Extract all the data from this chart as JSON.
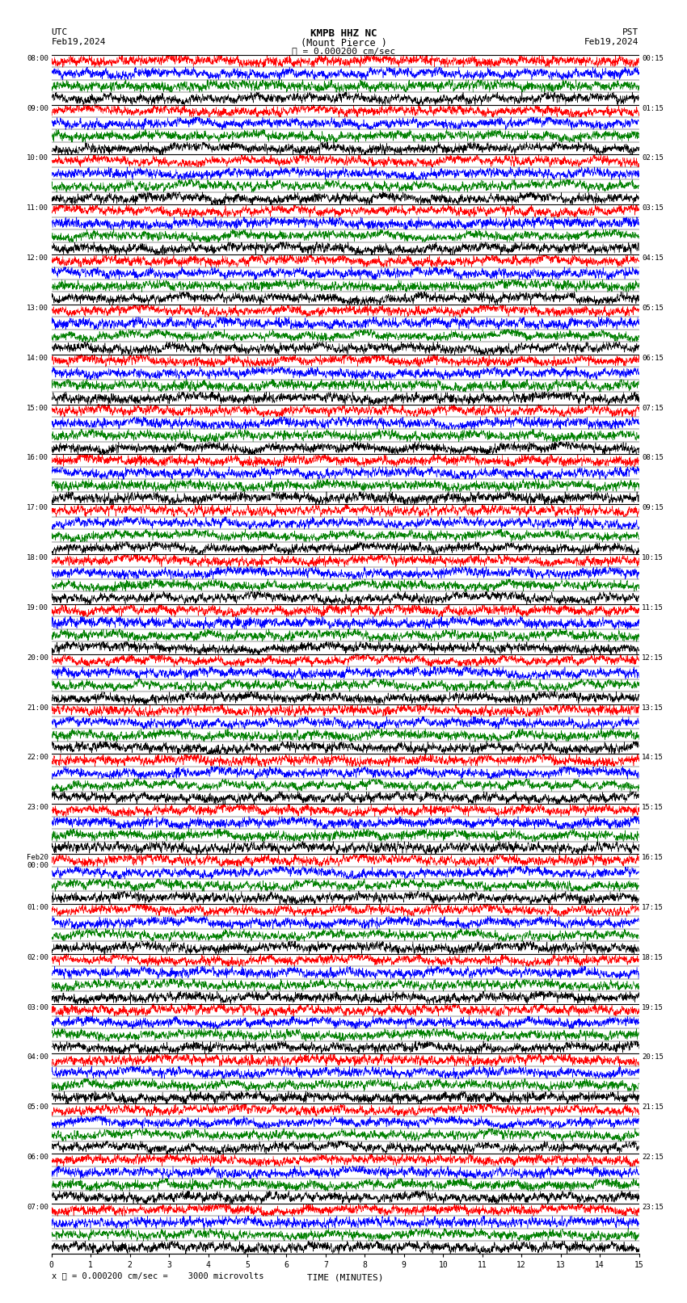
{
  "title_line1": "KMPB HHZ NC",
  "title_line2": "(Mount Pierce )",
  "scale_text": "= 0.000200 cm/sec",
  "scale_eq": "= 0.000200 cm/sec =    3000 microvolts",
  "utc_label": "UTC",
  "utc_date": "Feb19,2024",
  "pst_label": "PST",
  "pst_date": "Feb19,2024",
  "xlabel": "TIME (MINUTES)",
  "left_times": [
    "08:00",
    "09:00",
    "10:00",
    "11:00",
    "12:00",
    "13:00",
    "14:00",
    "15:00",
    "16:00",
    "17:00",
    "18:00",
    "19:00",
    "20:00",
    "21:00",
    "22:00",
    "23:00",
    "Feb20\n00:00",
    "01:00",
    "02:00",
    "03:00",
    "04:00",
    "05:00",
    "06:00",
    "07:00"
  ],
  "right_times": [
    "00:15",
    "01:15",
    "02:15",
    "03:15",
    "04:15",
    "05:15",
    "06:15",
    "07:15",
    "08:15",
    "09:15",
    "10:15",
    "11:15",
    "12:15",
    "13:15",
    "14:15",
    "15:15",
    "16:15",
    "17:15",
    "18:15",
    "19:15",
    "20:15",
    "21:15",
    "22:15",
    "23:15"
  ],
  "n_hours": 24,
  "sub_rows_per_hour": 4,
  "minutes_per_row": 15,
  "bg_color": "#ffffff",
  "row_colors": [
    "red",
    "blue",
    "green",
    "black"
  ],
  "seed": 42
}
